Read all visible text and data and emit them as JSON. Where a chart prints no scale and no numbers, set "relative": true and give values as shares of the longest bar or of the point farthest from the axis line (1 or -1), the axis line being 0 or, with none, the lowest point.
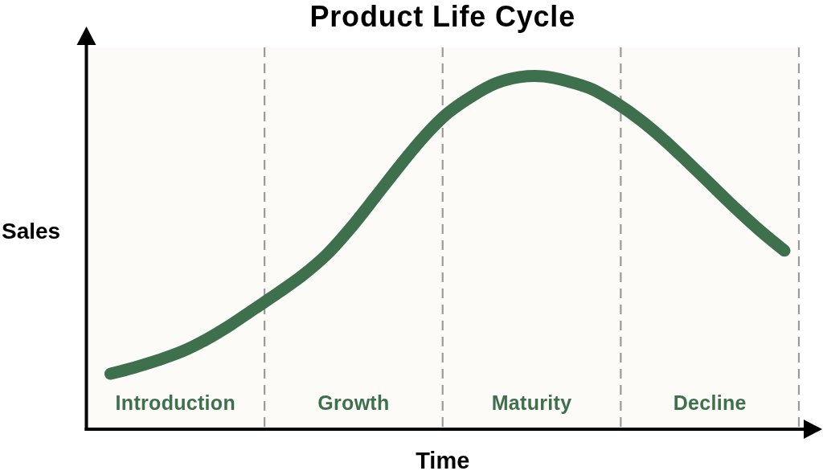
{
  "chart_data": {
    "type": "line",
    "title": "Product Life Cycle",
    "xlabel": "Time",
    "ylabel": "Sales",
    "relative": true,
    "categories": [
      null,
      null,
      null,
      null,
      null,
      null,
      null,
      null,
      null,
      null,
      null,
      null,
      null,
      null,
      null,
      null,
      null,
      null,
      null,
      null,
      null,
      null,
      null,
      null,
      null,
      null,
      null,
      null,
      null
    ],
    "series": [
      {
        "color": "#3e704e",
        "values": [
          0.157,
          0.175,
          0.196,
          0.221,
          0.255,
          0.296,
          0.342,
          0.388,
          0.437,
          0.496,
          0.572,
          0.658,
          0.745,
          0.827,
          0.895,
          0.943,
          0.98,
          0.998,
          1,
          0.986,
          0.964,
          0.925,
          0.877,
          0.82,
          0.756,
          0.69,
          0.624,
          0.562,
          0.506
        ]
      }
    ],
    "annotations": [
      "Introduction",
      "Growth",
      "Maturity",
      "Decline"
    ]
  }
}
